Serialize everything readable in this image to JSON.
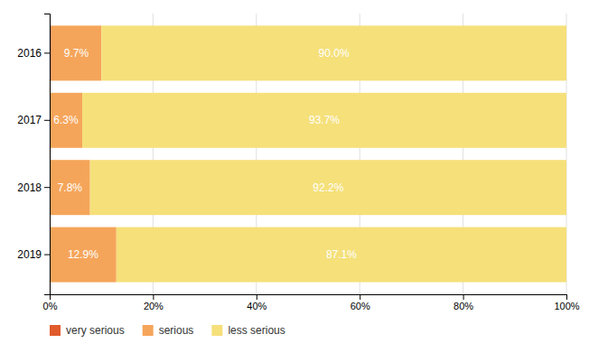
{
  "chart_data": {
    "type": "bar",
    "orientation": "horizontal",
    "stacked": true,
    "categories": [
      "2016",
      "2017",
      "2018",
      "2019"
    ],
    "series": [
      {
        "name": "very serious",
        "color": "#e05a2b",
        "values": [
          0.3,
          0.0,
          0.0,
          0.0
        ]
      },
      {
        "name": "serious",
        "color": "#f5a55a",
        "values": [
          9.7,
          6.3,
          7.8,
          12.9
        ],
        "value_labels": [
          "9.7%",
          "6.3%",
          "7.8%",
          "12.9%"
        ]
      },
      {
        "name": "less serious",
        "color": "#f5e07a",
        "values": [
          90.0,
          93.7,
          92.2,
          87.1
        ],
        "value_labels": [
          "90.0%",
          "93.7%",
          "92.2%",
          "87.1%"
        ]
      }
    ],
    "xlim": [
      0,
      100
    ],
    "xticks": [
      {
        "value": 0,
        "label": "0%"
      },
      {
        "value": 20,
        "label": "20%"
      },
      {
        "value": 40,
        "label": "40%"
      },
      {
        "value": 60,
        "label": "60%"
      },
      {
        "value": 80,
        "label": "80%"
      },
      {
        "value": 100,
        "label": "100%"
      }
    ],
    "grid": true,
    "legend": "bottom",
    "data_labels": true
  }
}
